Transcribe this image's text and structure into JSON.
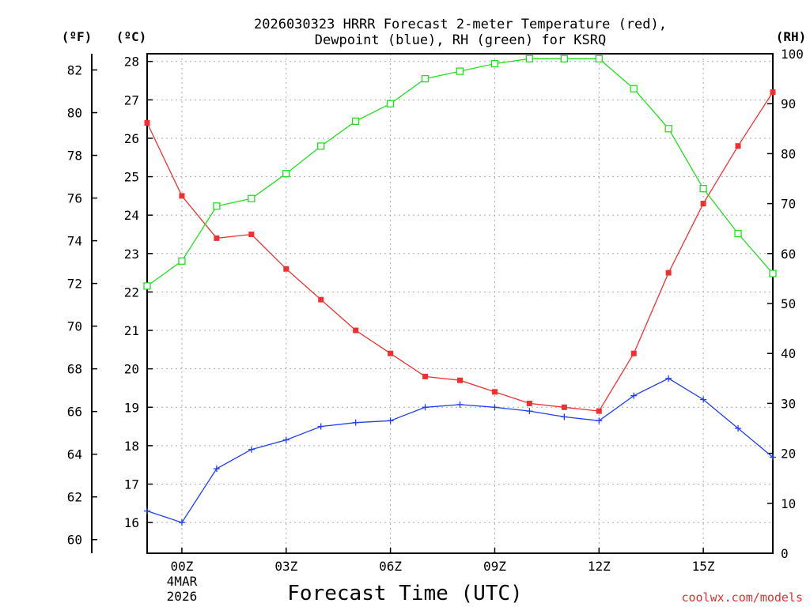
{
  "chart_data": {
    "type": "line",
    "title_line1": "2026030323 HRRR Forecast 2-meter Temperature (red),",
    "title_line2": "Dewpoint (blue), RH (green) for KSRQ",
    "xlabel": "Forecast Time (UTC)",
    "credit": "coolwx.com/models",
    "unit_f": "(ºF)",
    "unit_c": "(ºC)",
    "unit_rh": "(RH)",
    "x_ticks": [
      {
        "hour": 0,
        "label": "00Z",
        "date_line1": "4MAR",
        "date_line2": "2026"
      },
      {
        "hour": 3,
        "label": "03Z"
      },
      {
        "hour": 6,
        "label": "06Z"
      },
      {
        "hour": 9,
        "label": "09Z"
      },
      {
        "hour": 12,
        "label": "12Z"
      },
      {
        "hour": 15,
        "label": "15Z"
      }
    ],
    "xlim": [
      -1,
      17
    ],
    "ylim_c": [
      15.2,
      28.2
    ],
    "ylim_rh": [
      0,
      100
    ],
    "f_ticks": [
      60,
      62,
      64,
      66,
      68,
      70,
      72,
      74,
      76,
      78,
      80,
      82
    ],
    "c_ticks": [
      16,
      17,
      18,
      19,
      20,
      21,
      22,
      23,
      24,
      25,
      26,
      27,
      28
    ],
    "rh_ticks": [
      0,
      10,
      20,
      30,
      40,
      50,
      60,
      70,
      80,
      90,
      100
    ],
    "x": [
      -1,
      0,
      1,
      2,
      3,
      4,
      5,
      6,
      7,
      8,
      9,
      10,
      11,
      12,
      13,
      14,
      15,
      16,
      17
    ],
    "series": [
      {
        "name": "Temperature",
        "units": "C",
        "color": "#f03030",
        "marker": "filled-square",
        "values": [
          26.4,
          24.5,
          23.4,
          23.5,
          22.6,
          21.8,
          21.0,
          20.4,
          19.8,
          19.7,
          19.4,
          19.1,
          19.0,
          18.9,
          20.4,
          22.5,
          24.3,
          25.8,
          27.2
        ]
      },
      {
        "name": "Dewpoint",
        "units": "C",
        "color": "#2040f0",
        "marker": "plus",
        "values": [
          16.3,
          16.0,
          17.4,
          17.9,
          18.15,
          18.5,
          18.6,
          18.65,
          19.0,
          19.07,
          19.0,
          18.9,
          18.75,
          18.65,
          19.3,
          19.75,
          19.2,
          18.45,
          17.7
        ]
      },
      {
        "name": "RH",
        "units": "%",
        "color": "#20e020",
        "marker": "open-square",
        "values": [
          53.5,
          58.5,
          69.5,
          71,
          76,
          81.5,
          86.5,
          90,
          95,
          96.5,
          98,
          99,
          99,
          99,
          93,
          85,
          73,
          64,
          56
        ]
      }
    ]
  }
}
